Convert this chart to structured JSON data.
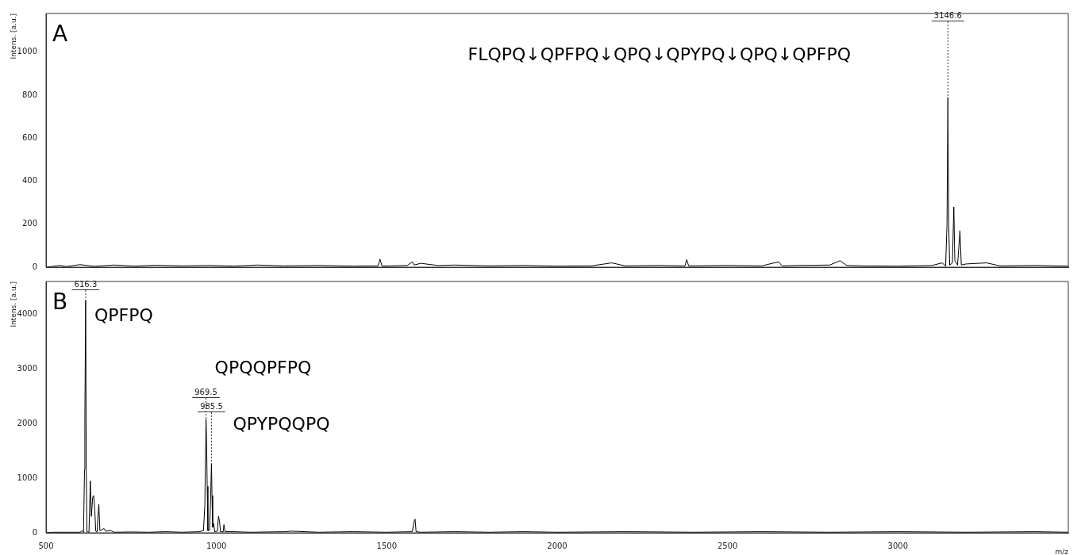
{
  "chart_data": [
    {
      "type": "line",
      "ylabel": "Intens. [a.u.]",
      "xlim": [
        500,
        3500
      ],
      "ylim": [
        0,
        1180
      ],
      "yticks": [
        0,
        200,
        400,
        600,
        800,
        1000
      ],
      "tick_labels": "y",
      "annotations": [
        "A",
        "FLQPQ↓QPFPQ↓QPQ↓QPYPQ↓QPQ↓QPFPQ",
        {
          "text": "3146.6",
          "x": 3146.6,
          "y": 790
        }
      ],
      "series": [
        {
          "color": "#000000",
          "x": [
            500,
            540,
            560,
            600,
            640,
            700,
            760,
            820,
            900,
            980,
            1050,
            1120,
            1200,
            1300,
            1400,
            1475,
            1480,
            1486,
            1560,
            1575,
            1580,
            1600,
            1650,
            1700,
            1800,
            1900,
            2000,
            2100,
            2160,
            2200,
            2300,
            2375,
            2380,
            2386,
            2500,
            2600,
            2650,
            2660,
            2700,
            2800,
            2830,
            2850,
            2900,
            3000,
            3100,
            3130,
            3140,
            3144,
            3146.6,
            3149,
            3152,
            3160,
            3164,
            3167,
            3175,
            3182,
            3186,
            3200,
            3260,
            3300,
            3400,
            3500
          ],
          "values": [
            0,
            8,
            3,
            12,
            4,
            10,
            5,
            9,
            6,
            8,
            5,
            10,
            6,
            8,
            5,
            6,
            38,
            5,
            8,
            25,
            10,
            18,
            8,
            10,
            6,
            8,
            5,
            6,
            20,
            6,
            8,
            6,
            35,
            6,
            8,
            6,
            25,
            6,
            8,
            10,
            30,
            8,
            6,
            5,
            8,
            20,
            5,
            200,
            790,
            200,
            10,
            20,
            280,
            30,
            10,
            170,
            10,
            15,
            20,
            6,
            8,
            5
          ]
        }
      ]
    },
    {
      "type": "line",
      "ylabel": "Intens. [a.u.]",
      "xlabel": "m/z",
      "xlim": [
        500,
        3500
      ],
      "xticks": [
        500,
        1000,
        1500,
        2000,
        2500,
        3000
      ],
      "ylim": [
        0,
        4600
      ],
      "yticks": [
        0,
        1000,
        2000,
        3000,
        4000
      ],
      "annotations": [
        "B",
        {
          "text": "QPFPQ",
          "x": 616.3,
          "y": 4250
        },
        {
          "text": "QPQQPFPQ",
          "x": 969.5,
          "y": 2080
        },
        {
          "text": "QPYPQQPQ",
          "x": 985.5,
          "y": 1270
        },
        {
          "text": "616.3",
          "x": 616.3,
          "y": 4250
        },
        {
          "text": "969.5",
          "x": 969.5,
          "y": 2080
        },
        {
          "text": "985.5",
          "x": 985.5,
          "y": 1270
        }
      ],
      "series": [
        {
          "color": "#000000",
          "x": [
            500,
            520,
            560,
            600,
            606,
            610,
            613,
            614,
            616.3,
            618,
            620,
            626,
            630,
            633,
            637,
            640,
            643,
            646,
            650,
            652,
            655,
            658,
            665,
            670,
            675,
            690,
            700,
            750,
            800,
            850,
            900,
            950,
            962,
            966,
            969.5,
            971,
            973,
            975,
            980,
            983,
            985.5,
            987,
            989,
            992,
            995,
            1003,
            1006,
            1009,
            1012,
            1020,
            1022,
            1025,
            1050,
            1100,
            1200,
            1220,
            1300,
            1400,
            1500,
            1575,
            1580,
            1583,
            1586,
            1600,
            1700,
            1800,
            1900,
            2000,
            2200,
            2400,
            2600,
            2800,
            3000,
            3200,
            3400,
            3500
          ],
          "values": [
            0,
            10,
            10,
            10,
            40,
            10,
            1150,
            2130,
            4250,
            1150,
            20,
            10,
            950,
            300,
            650,
            680,
            420,
            30,
            20,
            270,
            520,
            40,
            60,
            80,
            30,
            40,
            10,
            15,
            10,
            20,
            10,
            20,
            40,
            500,
            2080,
            1720,
            850,
            40,
            50,
            650,
            1270,
            680,
            100,
            170,
            20,
            30,
            300,
            220,
            20,
            20,
            150,
            20,
            20,
            10,
            20,
            30,
            10,
            20,
            10,
            20,
            200,
            250,
            20,
            10,
            20,
            10,
            20,
            10,
            20,
            10,
            20,
            10,
            20,
            10,
            20,
            10
          ]
        }
      ]
    }
  ]
}
